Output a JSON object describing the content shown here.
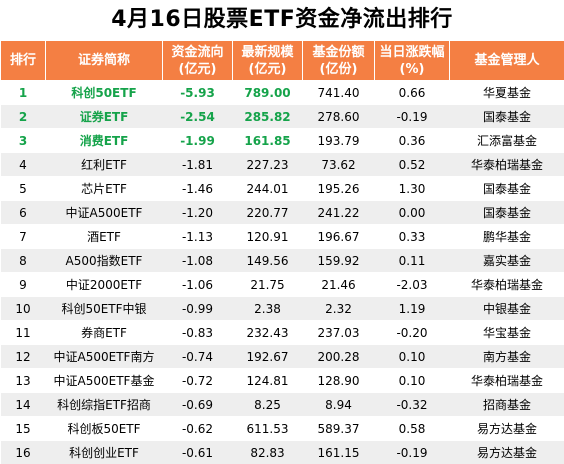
{
  "title": "4月16日股票ETF资金净流出排行",
  "headers": [
    [
      "排行"
    ],
    [
      "证券简称"
    ],
    [
      "资金流向",
      "(亿元)"
    ],
    [
      "最新规模",
      "(亿元)"
    ],
    [
      "基金份额",
      "(亿份)"
    ],
    [
      "当日涨跌幅",
      "(%)"
    ],
    [
      "基金管理人"
    ]
  ],
  "rows": [
    {
      "rank": "1",
      "name": "科创50ETF",
      "flow": "-5.93",
      "scale": "789.00",
      "shares": "741.40",
      "change": "0.66",
      "manager": "华夏基金"
    },
    {
      "rank": "2",
      "name": "证券ETF",
      "flow": "-2.54",
      "scale": "285.82",
      "shares": "278.60",
      "change": "-0.19",
      "manager": "国泰基金"
    },
    {
      "rank": "3",
      "name": "消费ETF",
      "flow": "-1.99",
      "scale": "161.85",
      "shares": "193.79",
      "change": "0.36",
      "manager": "汇添富基金"
    },
    {
      "rank": "4",
      "name": "红利ETF",
      "flow": "-1.81",
      "scale": "227.23",
      "shares": "73.62",
      "change": "0.52",
      "manager": "华泰柏瑞基金"
    },
    {
      "rank": "5",
      "name": "芯片ETF",
      "flow": "-1.46",
      "scale": "244.01",
      "shares": "195.26",
      "change": "1.30",
      "manager": "国泰基金"
    },
    {
      "rank": "6",
      "name": "中证A500ETF",
      "flow": "-1.20",
      "scale": "220.77",
      "shares": "241.22",
      "change": "0.00",
      "manager": "国泰基金"
    },
    {
      "rank": "7",
      "name": "酒ETF",
      "flow": "-1.13",
      "scale": "120.91",
      "shares": "196.67",
      "change": "0.33",
      "manager": "鹏华基金"
    },
    {
      "rank": "8",
      "name": "A500指数ETF",
      "flow": "-1.08",
      "scale": "149.56",
      "shares": "159.92",
      "change": "0.11",
      "manager": "嘉实基金"
    },
    {
      "rank": "9",
      "name": "中证2000ETF",
      "flow": "-1.06",
      "scale": "21.75",
      "shares": "21.46",
      "change": "-2.03",
      "manager": "华泰柏瑞基金"
    },
    {
      "rank": "10",
      "name": "科创50ETF中银",
      "flow": "-0.99",
      "scale": "2.38",
      "shares": "2.32",
      "change": "1.19",
      "manager": "中银基金"
    },
    {
      "rank": "11",
      "name": "券商ETF",
      "flow": "-0.83",
      "scale": "232.43",
      "shares": "237.03",
      "change": "-0.20",
      "manager": "华宝基金"
    },
    {
      "rank": "12",
      "name": "中证A500ETF南方",
      "flow": "-0.74",
      "scale": "192.67",
      "shares": "200.28",
      "change": "0.10",
      "manager": "南方基金"
    },
    {
      "rank": "13",
      "name": "中证A500ETF基金",
      "flow": "-0.72",
      "scale": "124.81",
      "shares": "128.90",
      "change": "0.10",
      "manager": "华泰柏瑞基金"
    },
    {
      "rank": "14",
      "name": "科创综指ETF招商",
      "flow": "-0.69",
      "scale": "8.25",
      "shares": "8.94",
      "change": "-0.32",
      "manager": "招商基金"
    },
    {
      "rank": "15",
      "name": "科创板50ETF",
      "flow": "-0.62",
      "scale": "611.53",
      "shares": "589.37",
      "change": "0.58",
      "manager": "易方达基金"
    },
    {
      "rank": "16",
      "name": "科创创业ETF",
      "flow": "-0.61",
      "scale": "82.83",
      "shares": "161.15",
      "change": "-0.19",
      "manager": "易方达基金"
    }
  ],
  "colors": {
    "header_bg": "#f47f43",
    "top3_text": "#15a34a",
    "stripe": "#eeeeee"
  }
}
